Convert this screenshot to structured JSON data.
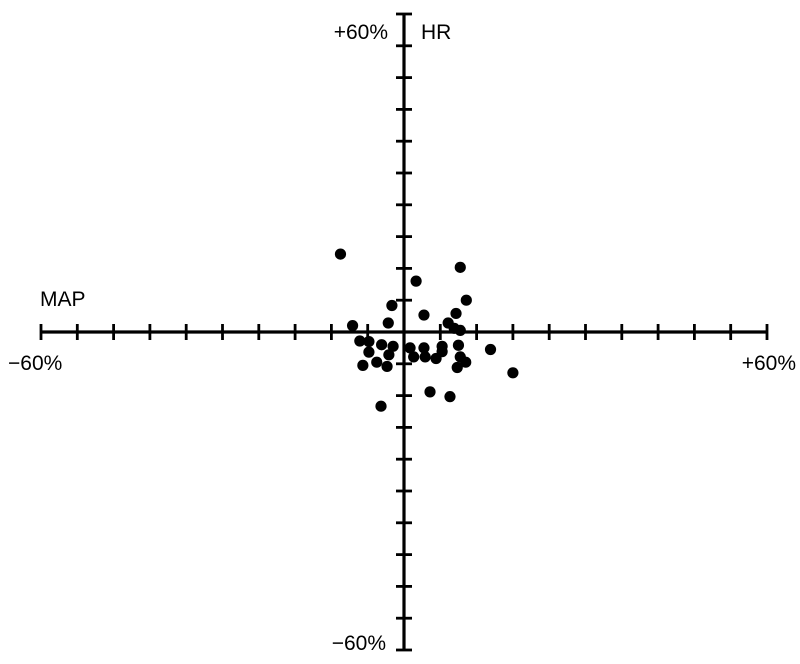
{
  "chart_data": {
    "type": "scatter",
    "title": "",
    "xlabel": "MAP",
    "ylabel": "HR",
    "xlim": [
      -60,
      60
    ],
    "ylim": [
      -60,
      60
    ],
    "x_tick_labels": {
      "min": "−60%",
      "max": "+60%"
    },
    "y_tick_labels": {
      "min": "−60%",
      "max": "+60%"
    },
    "tick_step": 6,
    "grid": false,
    "point_color": "#000000",
    "series": [
      {
        "points": [
          {
            "x": -10.5,
            "y": 14.7
          },
          {
            "x": 2.0,
            "y": 9.6
          },
          {
            "x": 9.3,
            "y": 12.2
          },
          {
            "x": -2.0,
            "y": 5.0
          },
          {
            "x": 10.3,
            "y": 6.0
          },
          {
            "x": 3.3,
            "y": 3.2
          },
          {
            "x": 8.6,
            "y": 3.5
          },
          {
            "x": -2.6,
            "y": 1.7
          },
          {
            "x": 7.3,
            "y": 1.7
          },
          {
            "x": -8.5,
            "y": 1.2
          },
          {
            "x": 8.3,
            "y": 0.7
          },
          {
            "x": 9.3,
            "y": 0.3
          },
          {
            "x": -7.3,
            "y": -1.7
          },
          {
            "x": -5.8,
            "y": -1.8
          },
          {
            "x": -3.7,
            "y": -2.4
          },
          {
            "x": -1.8,
            "y": -2.7
          },
          {
            "x": 1.0,
            "y": -3.0
          },
          {
            "x": 3.3,
            "y": -3.0
          },
          {
            "x": 6.3,
            "y": -2.7
          },
          {
            "x": 9.0,
            "y": -2.5
          },
          {
            "x": -5.8,
            "y": -3.8
          },
          {
            "x": -2.5,
            "y": -4.3
          },
          {
            "x": 1.6,
            "y": -4.7
          },
          {
            "x": 3.5,
            "y": -4.7
          },
          {
            "x": 6.3,
            "y": -3.7
          },
          {
            "x": 9.3,
            "y": -4.7
          },
          {
            "x": -6.8,
            "y": -6.3
          },
          {
            "x": -4.5,
            "y": -5.7
          },
          {
            "x": -2.8,
            "y": -6.5
          },
          {
            "x": 5.3,
            "y": -5.0
          },
          {
            "x": 10.2,
            "y": -5.7
          },
          {
            "x": 8.8,
            "y": -6.7
          },
          {
            "x": 14.3,
            "y": -3.3
          },
          {
            "x": 18.0,
            "y": -7.7
          },
          {
            "x": 4.3,
            "y": -11.3
          },
          {
            "x": 7.6,
            "y": -12.2
          },
          {
            "x": -3.8,
            "y": -14.0
          }
        ]
      }
    ]
  }
}
